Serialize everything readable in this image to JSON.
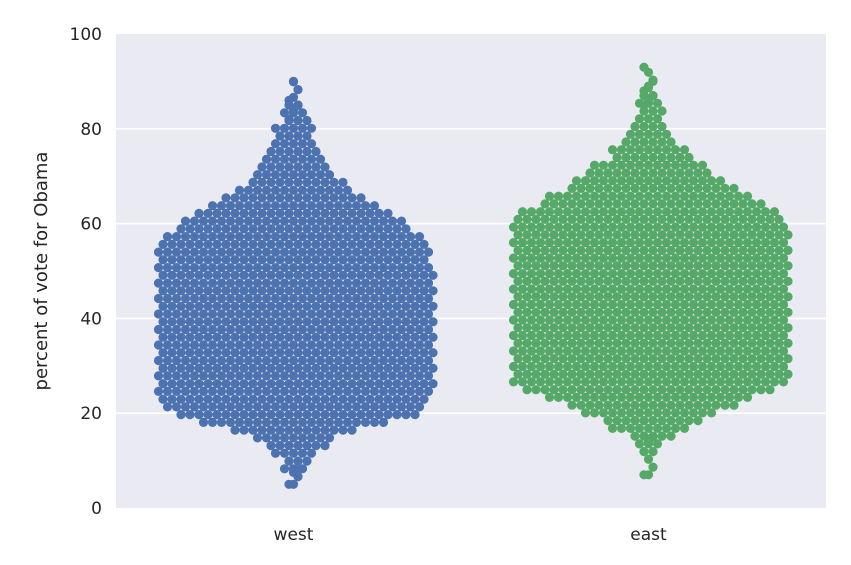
{
  "chart_data": {
    "type": "scatter",
    "subtype": "swarm",
    "title": "",
    "xlabel": "",
    "ylabel": "percent of vote for Obama",
    "categories": [
      "west",
      "east"
    ],
    "ylim": [
      0,
      100
    ],
    "yticks": [
      0,
      20,
      40,
      60,
      80,
      100
    ],
    "grid": true,
    "series": [
      {
        "category": "west",
        "color": "#4c72b0",
        "summary": {
          "min": 5,
          "max": 90,
          "bulk_range": [
            17,
            60
          ]
        },
        "outliers": [
          5,
          7.5,
          8,
          82,
          84,
          85,
          86,
          90
        ]
      },
      {
        "category": "east",
        "color": "#55a868",
        "summary": {
          "min": 7,
          "max": 93,
          "bulk_range": [
            24,
            64
          ]
        },
        "outliers": [
          7,
          14,
          15,
          85,
          86,
          87,
          88,
          89,
          90,
          93
        ]
      }
    ]
  }
}
